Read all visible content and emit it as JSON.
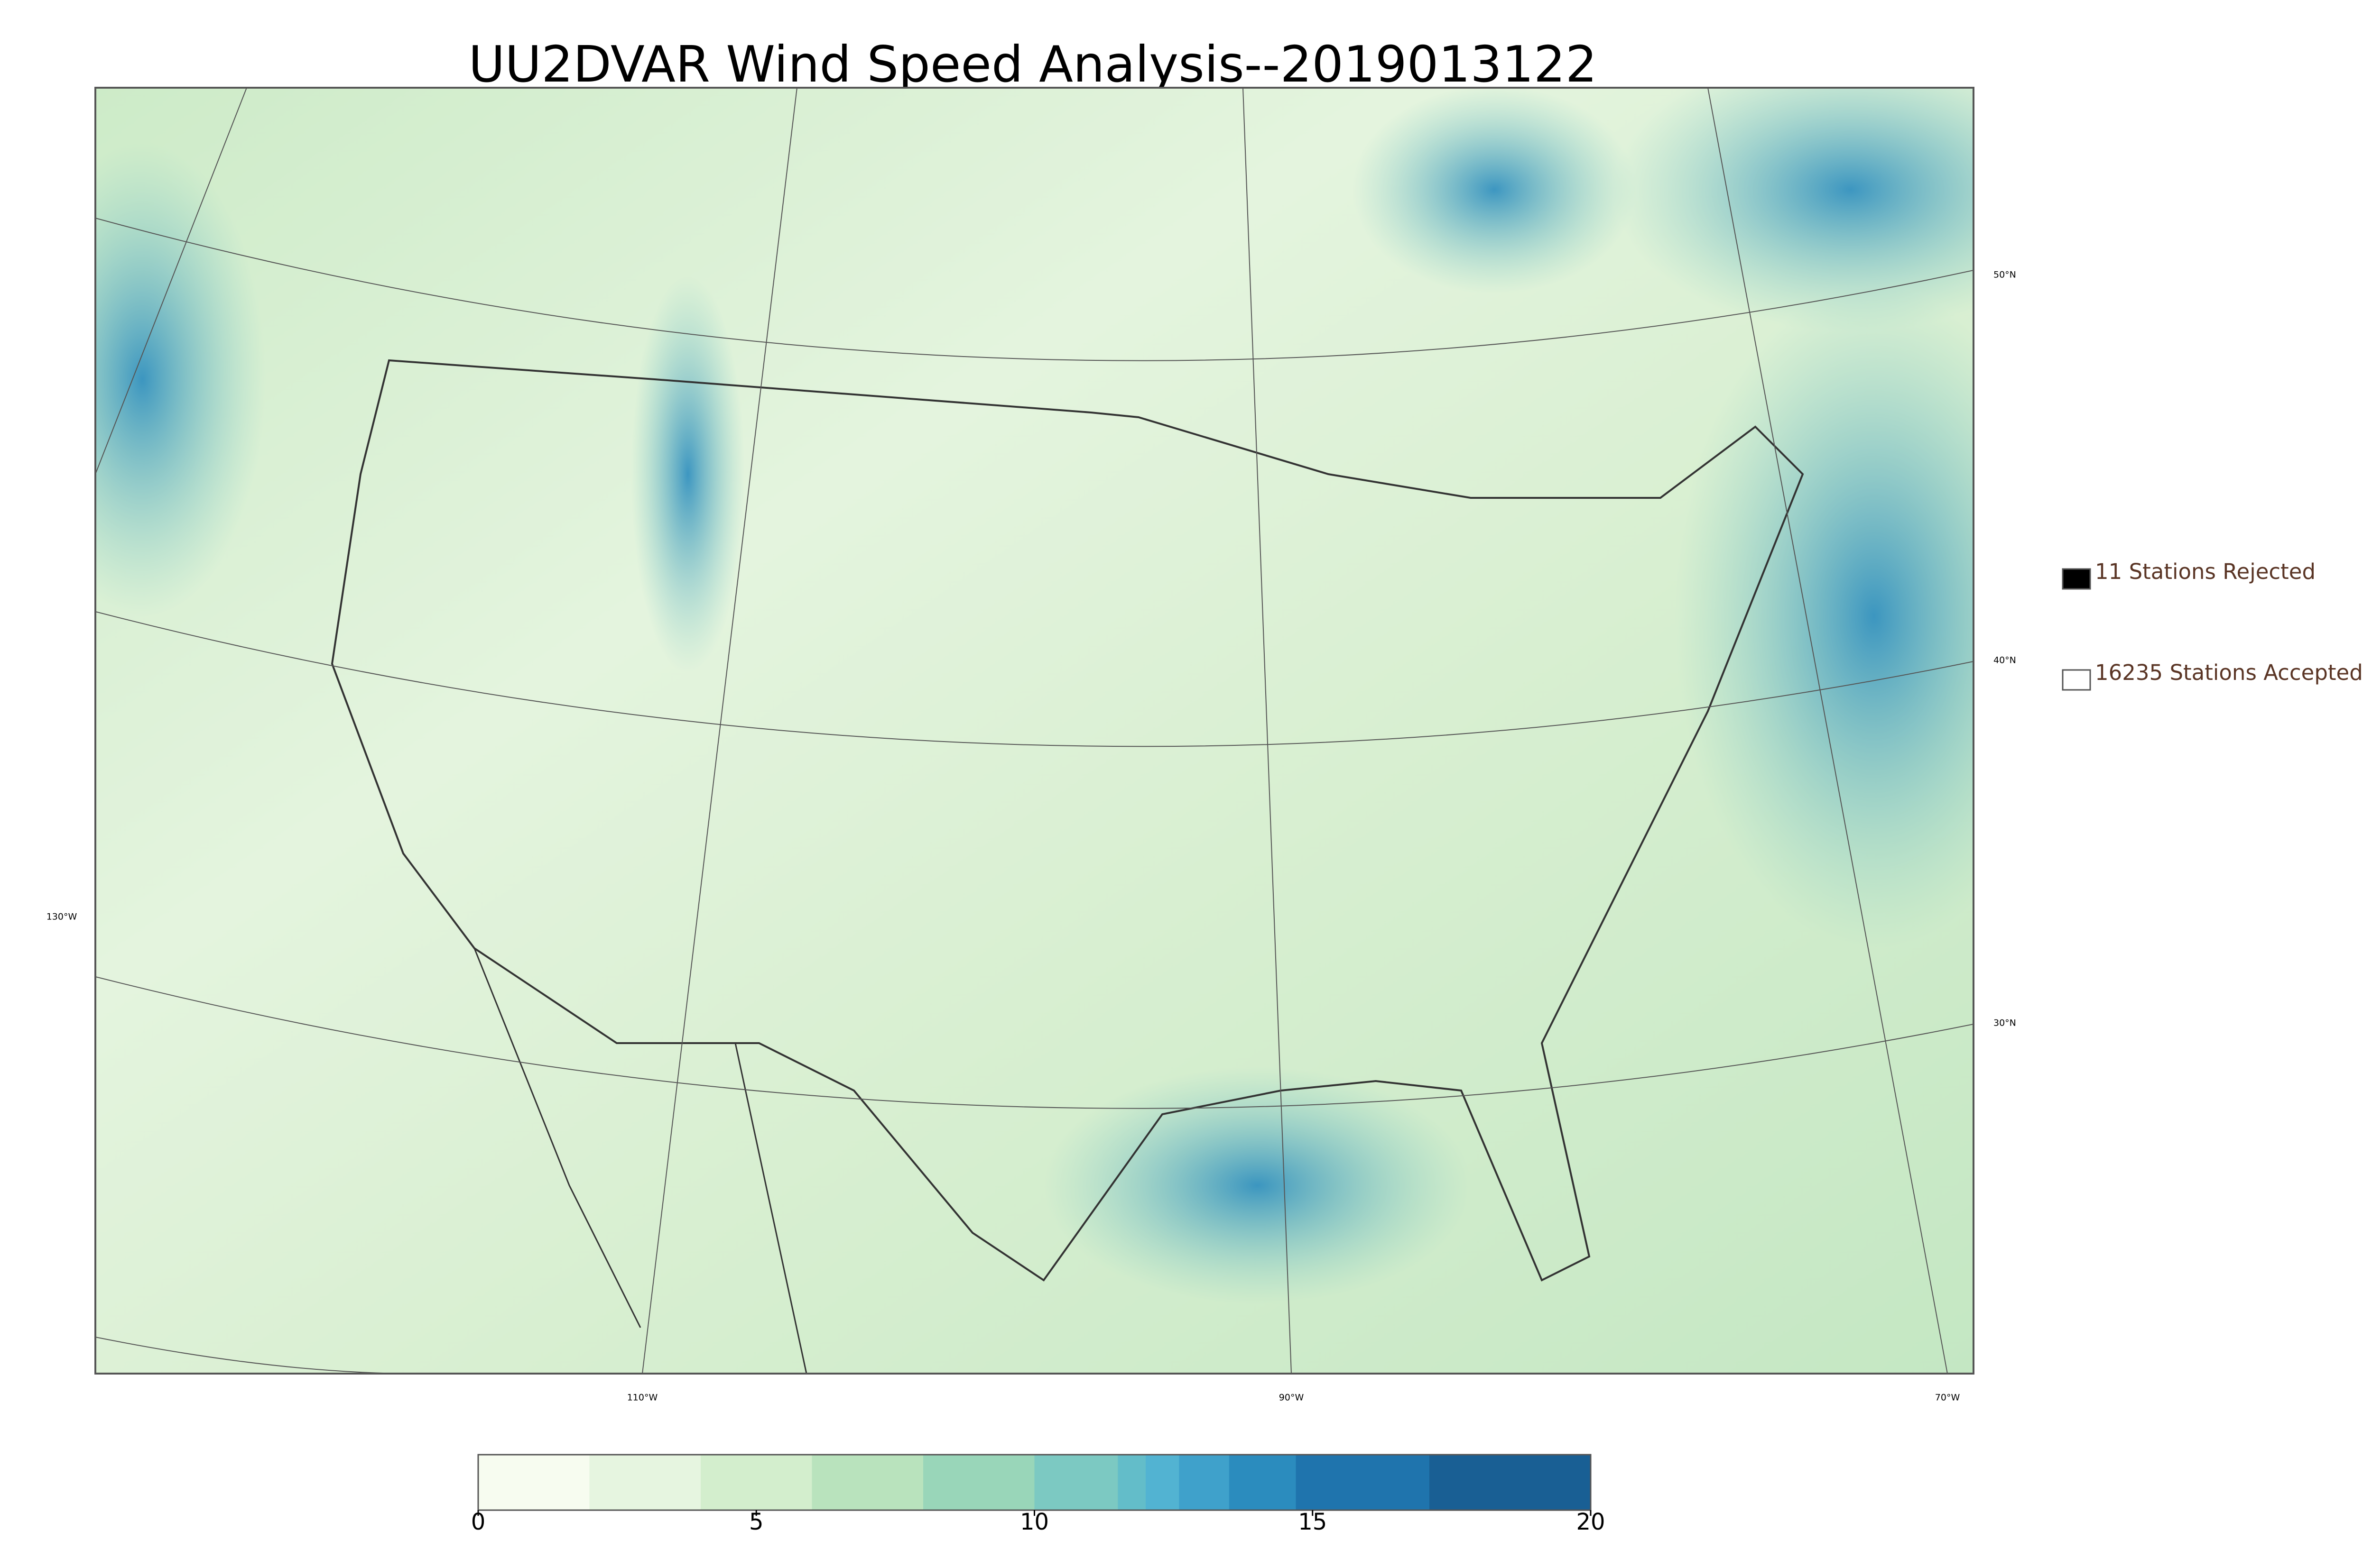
{
  "title": "UU2DVAR Wind Speed Analysis--2019013122",
  "map": {
    "lat_labels": [
      "50°N",
      "40°N",
      "30°N"
    ],
    "lon_labels": [
      "130°W",
      "110°W",
      "90°W",
      "70°W"
    ]
  },
  "legend": [
    {
      "label": "11 Stations Rejected",
      "fill": "#000000"
    },
    {
      "label": "16235 Stations Accepted",
      "fill": "#ffffff"
    }
  ],
  "colorbar": {
    "lim": [
      0,
      20
    ],
    "ticks": [
      0,
      5,
      10,
      15,
      20
    ],
    "bounds": [
      0,
      2,
      4,
      6,
      8,
      10,
      11.5,
      12,
      12.6,
      13.5,
      14.7,
      17.1,
      20
    ],
    "colors": [
      "#f7fcf0",
      "#e6f5e0",
      "#d3eecd",
      "#b9e3bd",
      "#99d6b9",
      "#7cc9c2",
      "#63bdc9",
      "#52b3d2",
      "#3fa1cb",
      "#2b8cbe",
      "#1f74ad",
      "#195f94"
    ]
  }
}
